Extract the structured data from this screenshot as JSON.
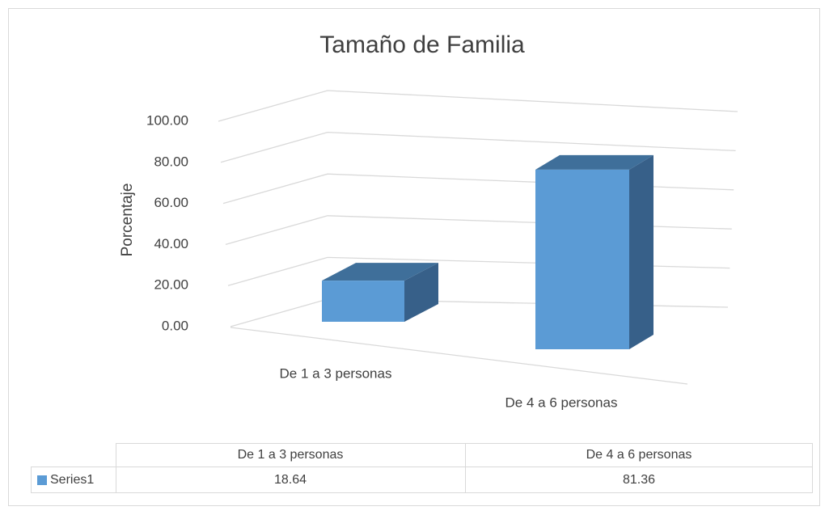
{
  "chart_data": {
    "type": "bar3d",
    "title": "Tamaño de Familia",
    "y_label": "Porcentaje",
    "categories": [
      "De 1 a 3 personas",
      "De 4 a 6 personas"
    ],
    "series": [
      {
        "name": "Series1",
        "color": "#5b9bd5",
        "values": [
          18.64,
          81.36
        ]
      }
    ],
    "ylim": [
      0,
      100
    ],
    "yticks": [
      {
        "value": 0,
        "label": "0.00"
      },
      {
        "value": 20,
        "label": "20.00"
      },
      {
        "value": 40,
        "label": "40.00"
      },
      {
        "value": 60,
        "label": "60.00"
      },
      {
        "value": 80,
        "label": "80.00"
      },
      {
        "value": 100,
        "label": "100.00"
      }
    ],
    "grid": true,
    "data_table": true
  }
}
